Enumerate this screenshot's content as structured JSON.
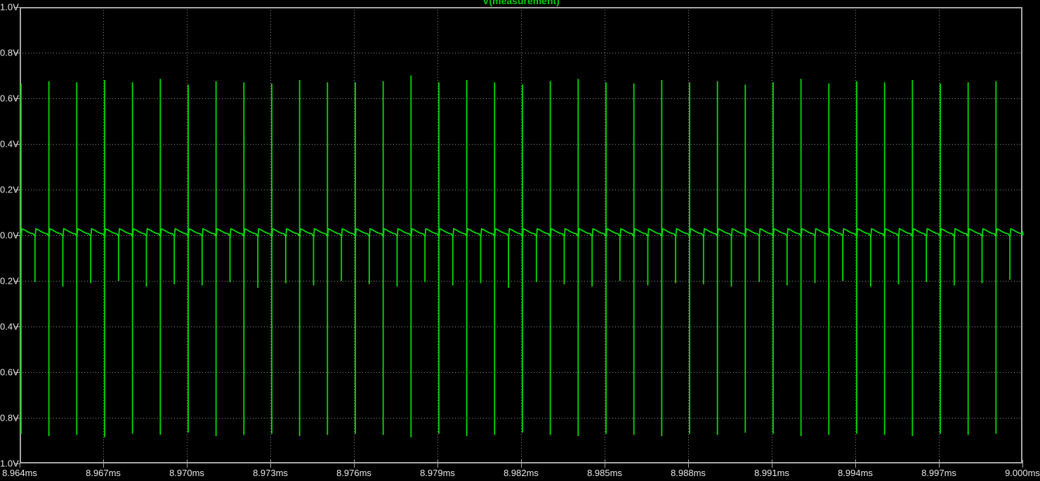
{
  "window": {
    "title": "V(measurement)"
  },
  "colors": {
    "background": "#000000",
    "trace": "#00DC00",
    "title_text": "#00D000",
    "grid": "#8C8C8C",
    "border": "#A8A8A8",
    "tick": "#A8A8A8",
    "label_text": "#E6E6E6"
  },
  "chart_data": {
    "type": "line",
    "title": "V(measurement)",
    "xlabel": "",
    "ylabel": "",
    "x_unit": "ms",
    "y_unit": "V",
    "xlim_ms": [
      8.964,
      9.0
    ],
    "ylim_v": [
      -1.0,
      1.0
    ],
    "grid": true,
    "legend_position": "top-center-title",
    "x_ticks": [
      "8.964ms",
      "8.967ms",
      "8.970ms",
      "8.973ms",
      "8.976ms",
      "8.979ms",
      "8.982ms",
      "8.985ms",
      "8.988ms",
      "8.991ms",
      "8.994ms",
      "8.997ms",
      "9.000ms"
    ],
    "x_tick_values_ms": [
      8.964,
      8.967,
      8.97,
      8.973,
      8.976,
      8.979,
      8.982,
      8.985,
      8.988,
      8.991,
      8.994,
      8.997,
      9.0
    ],
    "x_division_ms": 0.003,
    "y_ticks": [
      "1.0V",
      "0.8V",
      "0.6V",
      "0.4V",
      "0.2V",
      "0.0V",
      "0.2V",
      "0.4V",
      "0.6V",
      "0.8V",
      "1.0V"
    ],
    "y_tick_values": [
      1.0,
      0.8,
      0.6,
      0.4,
      0.2,
      0.0,
      -0.2,
      -0.4,
      -0.6,
      -0.8,
      -1.0
    ],
    "y_division_v": 0.2,
    "series": [
      {
        "name": "V(measurement)",
        "color": "#00DC00",
        "baseline_v": 0.006,
        "ripple_hump_v": 0.028,
        "ripple_dip_v": -0.015,
        "big_spikes": {
          "description": "bipolar switching spikes, 1 MHz",
          "first_t_ms": 8.96405,
          "period_ms": 0.001,
          "count": 36,
          "peak_up_v": [
            0.665,
            0.675,
            0.67,
            0.68,
            0.67,
            0.685,
            0.66,
            0.675,
            0.67,
            0.665,
            0.68,
            0.67,
            0.67,
            0.675,
            0.7,
            0.67,
            0.68,
            0.67,
            0.66,
            0.675,
            0.685,
            0.67,
            0.665,
            0.68,
            0.67,
            0.675,
            0.66,
            0.67,
            0.685,
            0.665,
            0.675,
            0.67,
            0.68,
            0.665,
            0.67,
            0.675
          ],
          "peak_down_v": [
            -0.87,
            -0.88,
            -0.875,
            -0.885,
            -0.87,
            -0.875,
            -0.865,
            -0.88,
            -0.875,
            -0.87,
            -0.88,
            -0.875,
            -0.87,
            -0.875,
            -0.885,
            -0.87,
            -0.88,
            -0.875,
            -0.865,
            -0.875,
            -0.88,
            -0.87,
            -0.875,
            -0.88,
            -0.87,
            -0.875,
            -0.865,
            -0.87,
            -0.88,
            -0.875,
            -0.87,
            -0.875,
            -0.88,
            -0.87,
            -0.875,
            -0.87
          ]
        },
        "small_spikes": {
          "description": "downward-only spikes midway between big spikes",
          "first_t_ms": 8.96455,
          "period_ms": 0.001,
          "count": 36,
          "peak_down_v": [
            -0.205,
            -0.225,
            -0.21,
            -0.2,
            -0.225,
            -0.215,
            -0.22,
            -0.205,
            -0.23,
            -0.21,
            -0.22,
            -0.2,
            -0.215,
            -0.225,
            -0.205,
            -0.22,
            -0.21,
            -0.23,
            -0.205,
            -0.215,
            -0.225,
            -0.2,
            -0.22,
            -0.21,
            -0.215,
            -0.225,
            -0.205,
            -0.22,
            -0.21,
            -0.2,
            -0.225,
            -0.215,
            -0.205,
            -0.22,
            -0.21,
            -0.195
          ]
        }
      }
    ]
  }
}
